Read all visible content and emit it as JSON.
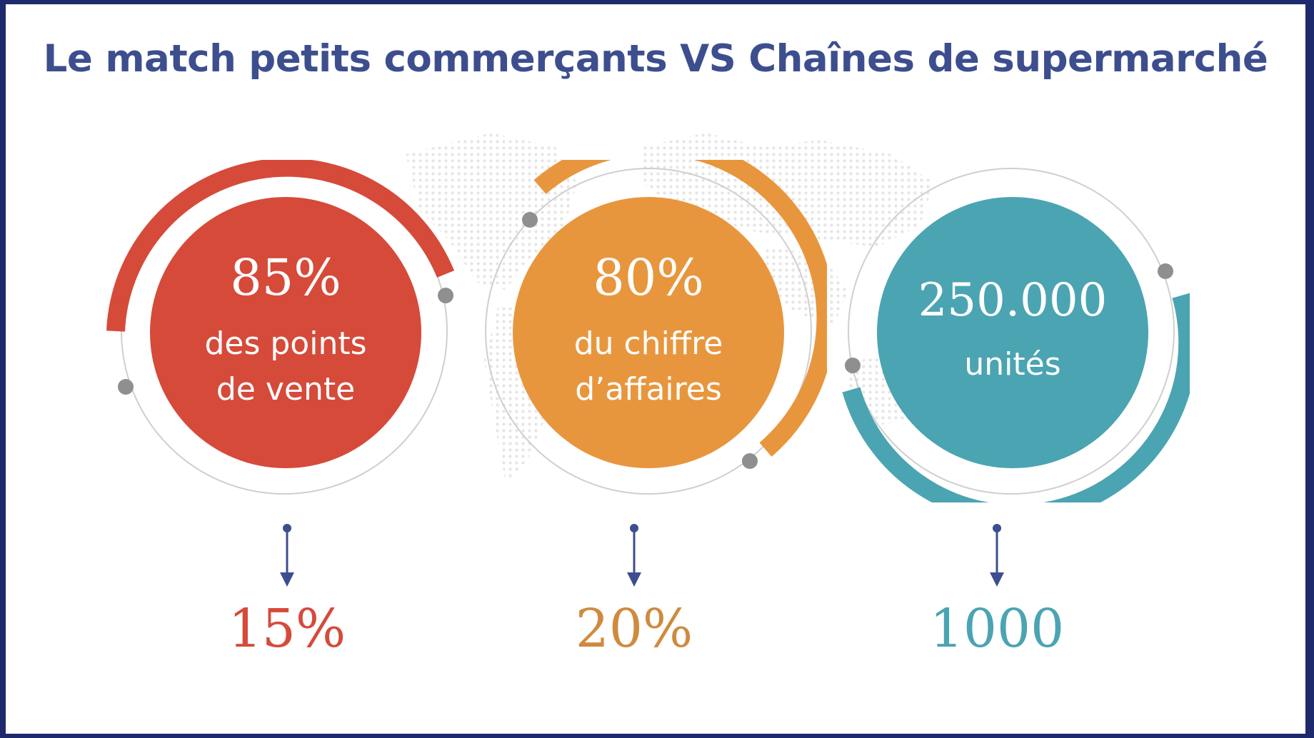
{
  "title": "Le match petits commerçants VS Chaînes de supermarché",
  "colors": {
    "red": "#d64a3a",
    "orange": "#e8963d",
    "teal": "#4ba4b2",
    "navy": "#3d4e8f"
  },
  "stats": [
    {
      "value": "85%",
      "line1": "des points",
      "line2": "de vente",
      "result": "15%"
    },
    {
      "value": "80%",
      "line1": "du chiffre",
      "line2": "d’affaires",
      "result": "20%"
    },
    {
      "value": "250.000",
      "line1": "unités",
      "line2": "",
      "result": "1000"
    }
  ]
}
